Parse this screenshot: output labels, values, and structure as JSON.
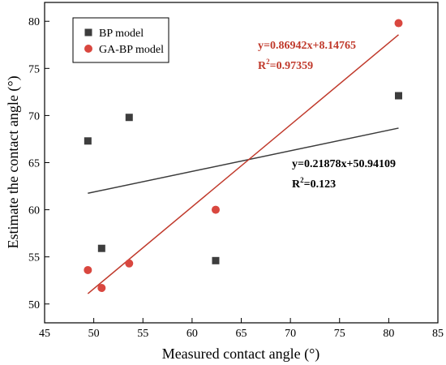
{
  "chart_data": {
    "type": "scatter",
    "xlabel": "Measured contact angle (°)",
    "ylabel": "Estimate the contact angle (°)",
    "xlim": [
      45,
      85
    ],
    "ylim": [
      48,
      82
    ],
    "x_ticks": [
      45,
      50,
      55,
      60,
      65,
      70,
      75,
      80,
      85
    ],
    "y_ticks": [
      50,
      55,
      60,
      65,
      70,
      75,
      80
    ],
    "grid": false,
    "legend_position": "top-left",
    "series": [
      {
        "name": "BP model",
        "marker": "square",
        "color": "#3d3d3d",
        "points": [
          [
            49.4,
            67.3
          ],
          [
            50.8,
            55.9
          ],
          [
            53.6,
            69.8
          ],
          [
            62.4,
            54.6
          ],
          [
            81.0,
            72.1
          ]
        ],
        "fit": {
          "slope": 0.21878,
          "intercept": 50.94109,
          "x_range": [
            49.4,
            81.0
          ],
          "color": "#3a3a3a",
          "equation": "y=0.21878x+50.94109",
          "r2_label": "R",
          "r2_sup": "2",
          "r2_value": "=0.123"
        }
      },
      {
        "name": "GA-BP model",
        "marker": "circle",
        "color": "#d9473f",
        "points": [
          [
            49.4,
            53.6
          ],
          [
            50.8,
            51.7
          ],
          [
            53.6,
            54.3
          ],
          [
            62.4,
            60.0
          ],
          [
            81.0,
            79.8
          ]
        ],
        "fit": {
          "slope": 0.86942,
          "intercept": 8.14765,
          "x_range": [
            49.4,
            81.0
          ],
          "color": "#c0392b",
          "equation": "y=0.86942x+8.14765",
          "r2_label": "R",
          "r2_sup": "2",
          "r2_value": "=0.97359"
        }
      }
    ]
  }
}
